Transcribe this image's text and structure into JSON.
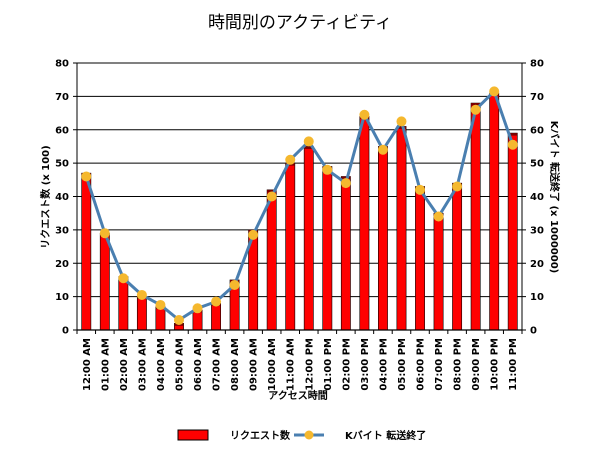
{
  "chart_data": {
    "type": "bar",
    "title": "時間別のアクティビティ",
    "xlabel": "アクセス時間",
    "ylabel": "リクエスト数 (x 100)",
    "y2label": "Kバイト 転送終了 (x 1000000)",
    "ylim": [
      0,
      80
    ],
    "y2lim": [
      0,
      80
    ],
    "yticks": [
      0,
      10,
      20,
      30,
      40,
      50,
      60,
      70,
      80
    ],
    "grid": true,
    "legend_position": "bottom",
    "categories": [
      "12:00 AM",
      "01:00 AM",
      "02:00 AM",
      "03:00 AM",
      "04:00 AM",
      "05:00 AM",
      "06:00 AM",
      "07:00 AM",
      "08:00 AM",
      "09:00 AM",
      "10:00 AM",
      "11:00 AM",
      "12:00 PM",
      "01:00 PM",
      "02:00 PM",
      "03:00 PM",
      "04:00 PM",
      "05:00 PM",
      "06:00 PM",
      "07:00 PM",
      "08:00 PM",
      "09:00 PM",
      "10:00 PM",
      "11:00 PM"
    ],
    "series": [
      {
        "name": "リクエスト数",
        "type": "bar",
        "axis": "left",
        "color": "#ff0000",
        "values": [
          47,
          29,
          16,
          10,
          7,
          2,
          6,
          8,
          15,
          30,
          42,
          50,
          55,
          49,
          46,
          64,
          55,
          61,
          43,
          35,
          44,
          68,
          71,
          59
        ]
      },
      {
        "name": "Kバイト 転送終了",
        "type": "line",
        "axis": "right",
        "color": "#4a7fb0",
        "marker_color": "#f5b82e",
        "values": [
          46,
          29,
          15.5,
          10.5,
          7.5,
          3,
          6.5,
          8.5,
          13.5,
          28.5,
          40,
          51,
          56.5,
          48,
          44,
          64.5,
          54,
          62.5,
          42,
          34,
          43,
          66,
          71.5,
          55.5
        ]
      }
    ]
  }
}
